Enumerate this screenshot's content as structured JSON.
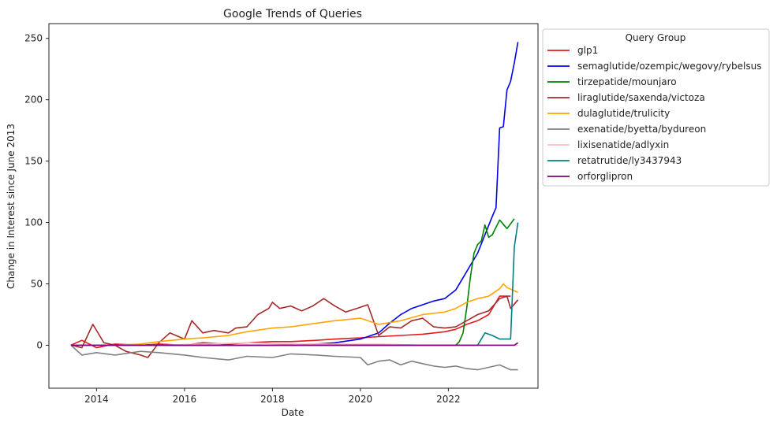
{
  "chart_data": {
    "type": "line",
    "title": "Google Trends of Queries",
    "xlabel": "Date",
    "ylabel": "Change in Interest since June 2013",
    "xlim": [
      "2012-12-01",
      "2024-01-15"
    ],
    "ylim": [
      -35,
      262
    ],
    "x_ticks": [
      "2014",
      "2016",
      "2018",
      "2020",
      "2022"
    ],
    "y_ticks": [
      0,
      50,
      100,
      150,
      200,
      250
    ],
    "grid": false,
    "legend": {
      "title": "Query Group",
      "placement": "outside-right-top"
    },
    "series": [
      {
        "name": "glp1",
        "color": "#e41a1c",
        "points": [
          [
            "2013-06",
            0
          ],
          [
            "2013-09",
            4
          ],
          [
            "2014-01",
            -2
          ],
          [
            "2014-06",
            1
          ],
          [
            "2015-01",
            0
          ],
          [
            "2015-06",
            1
          ],
          [
            "2016-01",
            0
          ],
          [
            "2016-06",
            2
          ],
          [
            "2017-01",
            1
          ],
          [
            "2017-06",
            2
          ],
          [
            "2018-01",
            3
          ],
          [
            "2018-06",
            3
          ],
          [
            "2019-01",
            4
          ],
          [
            "2019-06",
            5
          ],
          [
            "2020-01",
            6
          ],
          [
            "2020-06",
            7
          ],
          [
            "2020-12",
            8
          ],
          [
            "2021-06",
            9
          ],
          [
            "2021-12",
            11
          ],
          [
            "2022-03",
            13
          ],
          [
            "2022-06",
            17
          ],
          [
            "2022-09",
            20
          ],
          [
            "2022-12",
            25
          ],
          [
            "2023-03",
            40
          ],
          [
            "2023-06",
            40
          ]
        ]
      },
      {
        "name": "semaglutide/ozempic/wegovy/rybelsus",
        "color": "#0000ee",
        "points": [
          [
            "2013-06",
            0
          ],
          [
            "2016-01",
            0
          ],
          [
            "2018-01",
            0
          ],
          [
            "2019-01",
            1
          ],
          [
            "2019-06",
            2
          ],
          [
            "2020-01",
            5
          ],
          [
            "2020-06",
            10
          ],
          [
            "2020-09",
            18
          ],
          [
            "2020-12",
            25
          ],
          [
            "2021-03",
            30
          ],
          [
            "2021-06",
            33
          ],
          [
            "2021-09",
            36
          ],
          [
            "2021-12",
            38
          ],
          [
            "2022-03",
            45
          ],
          [
            "2022-05",
            55
          ],
          [
            "2022-07",
            65
          ],
          [
            "2022-09",
            75
          ],
          [
            "2022-11",
            90
          ],
          [
            "2023-01",
            105
          ],
          [
            "2023-02",
            112
          ],
          [
            "2023-03",
            177
          ],
          [
            "2023-04",
            178
          ],
          [
            "2023-05",
            208
          ],
          [
            "2023-06",
            215
          ],
          [
            "2023-07",
            230
          ],
          [
            "2023-08",
            247
          ]
        ]
      },
      {
        "name": "tirzepatide/mounjaro",
        "color": "#008000",
        "points": [
          [
            "2013-06",
            0
          ],
          [
            "2022-03",
            0
          ],
          [
            "2022-04",
            3
          ],
          [
            "2022-05",
            10
          ],
          [
            "2022-06",
            30
          ],
          [
            "2022-07",
            55
          ],
          [
            "2022-08",
            75
          ],
          [
            "2022-09",
            82
          ],
          [
            "2022-10",
            85
          ],
          [
            "2022-11",
            98
          ],
          [
            "2022-12",
            88
          ],
          [
            "2023-01",
            90
          ],
          [
            "2023-03",
            102
          ],
          [
            "2023-05",
            95
          ],
          [
            "2023-07",
            103
          ]
        ]
      },
      {
        "name": "liraglutide/saxenda/victoza",
        "color": "#a52a2a",
        "points": [
          [
            "2013-06",
            0
          ],
          [
            "2013-09",
            -2
          ],
          [
            "2013-12",
            17
          ],
          [
            "2014-03",
            2
          ],
          [
            "2014-06",
            0
          ],
          [
            "2014-09",
            -5
          ],
          [
            "2015-01",
            -8
          ],
          [
            "2015-03",
            -10
          ],
          [
            "2015-06",
            2
          ],
          [
            "2015-09",
            10
          ],
          [
            "2016-01",
            5
          ],
          [
            "2016-03",
            20
          ],
          [
            "2016-06",
            10
          ],
          [
            "2016-09",
            12
          ],
          [
            "2017-01",
            10
          ],
          [
            "2017-03",
            14
          ],
          [
            "2017-06",
            15
          ],
          [
            "2017-09",
            25
          ],
          [
            "2017-12",
            30
          ],
          [
            "2018-01",
            35
          ],
          [
            "2018-03",
            30
          ],
          [
            "2018-06",
            32
          ],
          [
            "2018-09",
            28
          ],
          [
            "2018-12",
            32
          ],
          [
            "2019-03",
            38
          ],
          [
            "2019-06",
            32
          ],
          [
            "2019-09",
            27
          ],
          [
            "2019-12",
            30
          ],
          [
            "2020-03",
            33
          ],
          [
            "2020-06",
            8
          ],
          [
            "2020-09",
            15
          ],
          [
            "2020-12",
            14
          ],
          [
            "2021-03",
            20
          ],
          [
            "2021-06",
            22
          ],
          [
            "2021-09",
            15
          ],
          [
            "2021-12",
            14
          ],
          [
            "2022-03",
            15
          ],
          [
            "2022-06",
            20
          ],
          [
            "2022-09",
            25
          ],
          [
            "2022-12",
            28
          ],
          [
            "2023-03",
            38
          ],
          [
            "2023-05",
            40
          ],
          [
            "2023-06",
            30
          ],
          [
            "2023-08",
            37
          ]
        ]
      },
      {
        "name": "dulaglutide/trulicity",
        "color": "#ffa500",
        "points": [
          [
            "2013-06",
            0
          ],
          [
            "2014-06",
            0
          ],
          [
            "2015-01",
            1
          ],
          [
            "2015-06",
            3
          ],
          [
            "2016-01",
            5
          ],
          [
            "2016-06",
            6
          ],
          [
            "2017-01",
            8
          ],
          [
            "2017-06",
            11
          ],
          [
            "2018-01",
            14
          ],
          [
            "2018-06",
            15
          ],
          [
            "2019-01",
            18
          ],
          [
            "2019-06",
            20
          ],
          [
            "2020-01",
            22
          ],
          [
            "2020-06",
            17
          ],
          [
            "2020-12",
            20
          ],
          [
            "2021-06",
            25
          ],
          [
            "2021-12",
            27
          ],
          [
            "2022-03",
            30
          ],
          [
            "2022-06",
            35
          ],
          [
            "2022-09",
            38
          ],
          [
            "2022-12",
            40
          ],
          [
            "2023-03",
            46
          ],
          [
            "2023-04",
            50
          ],
          [
            "2023-05",
            47
          ],
          [
            "2023-08",
            43
          ]
        ]
      },
      {
        "name": "exenatide/byetta/bydureon",
        "color": "#808080",
        "points": [
          [
            "2013-06",
            0
          ],
          [
            "2013-09",
            -8
          ],
          [
            "2014-01",
            -6
          ],
          [
            "2014-06",
            -8
          ],
          [
            "2015-01",
            -5
          ],
          [
            "2015-06",
            -6
          ],
          [
            "2016-01",
            -8
          ],
          [
            "2016-06",
            -10
          ],
          [
            "2017-01",
            -12
          ],
          [
            "2017-06",
            -9
          ],
          [
            "2018-01",
            -10
          ],
          [
            "2018-06",
            -7
          ],
          [
            "2019-01",
            -8
          ],
          [
            "2019-06",
            -9
          ],
          [
            "2020-01",
            -10
          ],
          [
            "2020-03",
            -16
          ],
          [
            "2020-06",
            -13
          ],
          [
            "2020-09",
            -12
          ],
          [
            "2020-12",
            -16
          ],
          [
            "2021-03",
            -13
          ],
          [
            "2021-06",
            -15
          ],
          [
            "2021-09",
            -17
          ],
          [
            "2021-12",
            -18
          ],
          [
            "2022-03",
            -17
          ],
          [
            "2022-06",
            -19
          ],
          [
            "2022-09",
            -20
          ],
          [
            "2022-12",
            -18
          ],
          [
            "2023-03",
            -16
          ],
          [
            "2023-06",
            -20
          ],
          [
            "2023-08",
            -20
          ]
        ]
      },
      {
        "name": "lixisenatide/adlyxin",
        "color": "#ffc0cb",
        "points": [
          [
            "2013-06",
            0
          ],
          [
            "2015-06",
            0
          ],
          [
            "2016-06",
            1
          ],
          [
            "2017-06",
            2
          ],
          [
            "2018-06",
            1
          ],
          [
            "2019-06",
            1
          ],
          [
            "2020-06",
            1
          ],
          [
            "2021-06",
            0
          ],
          [
            "2022-06",
            0
          ],
          [
            "2023-08",
            0
          ]
        ]
      },
      {
        "name": "retatrutide/ly3437943",
        "color": "#008080",
        "points": [
          [
            "2013-06",
            0
          ],
          [
            "2022-09",
            0
          ],
          [
            "2022-11",
            10
          ],
          [
            "2023-01",
            8
          ],
          [
            "2023-03",
            5
          ],
          [
            "2023-06",
            5
          ],
          [
            "2023-07",
            80
          ],
          [
            "2023-08",
            100
          ]
        ]
      },
      {
        "name": "orforglipron",
        "color": "#800080",
        "points": [
          [
            "2013-06",
            0
          ],
          [
            "2023-07",
            0
          ],
          [
            "2023-08",
            2
          ]
        ]
      }
    ]
  }
}
